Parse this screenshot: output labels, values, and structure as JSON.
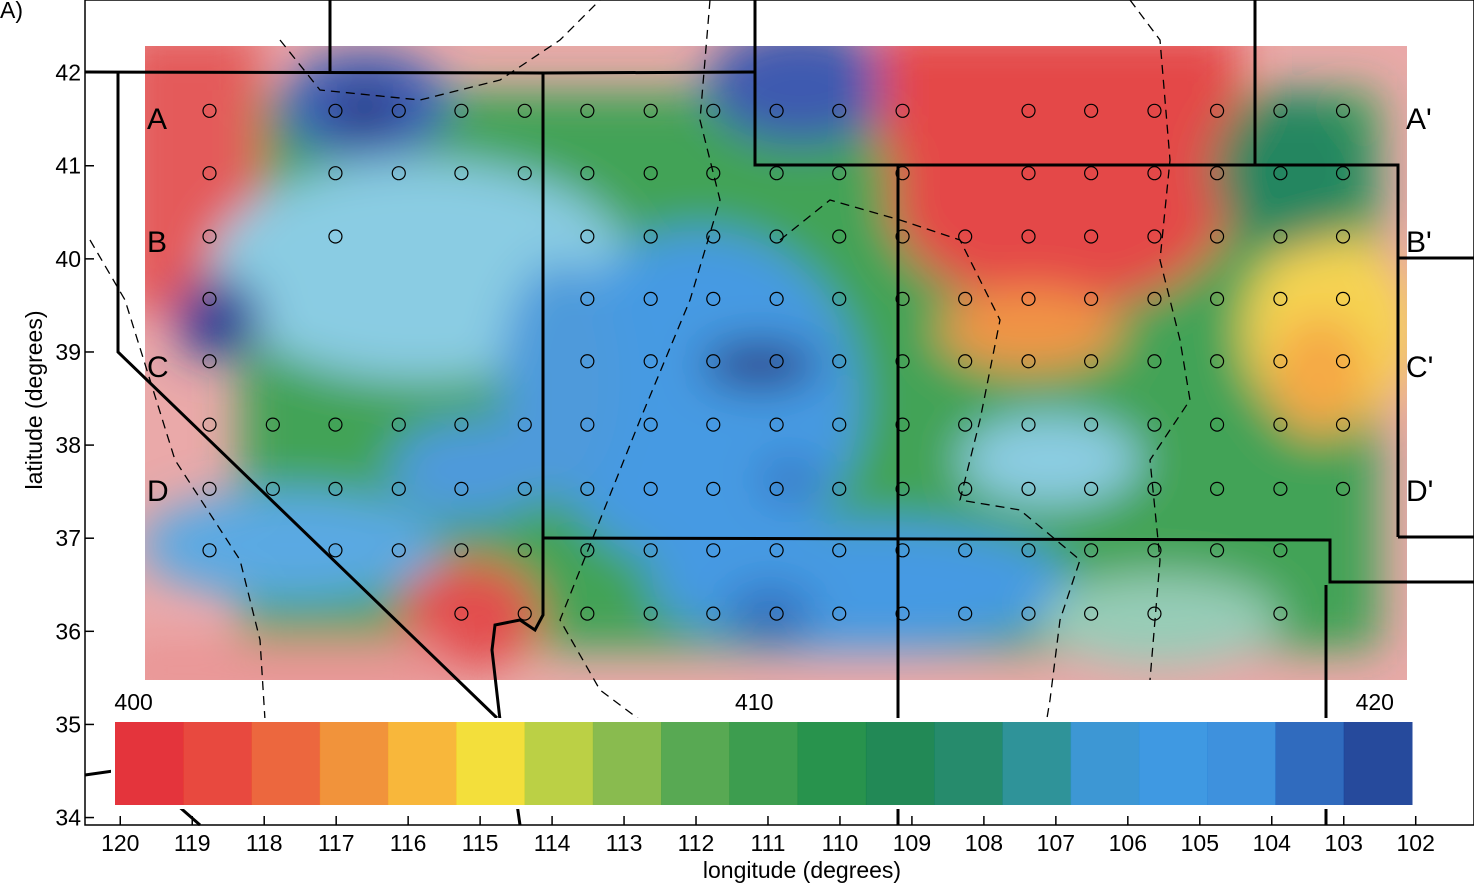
{
  "chart_data": {
    "type": "map",
    "panel_label": "A)",
    "xlabel": "longitude (degrees)",
    "ylabel": "latitude (degrees)",
    "xlim": [
      120.49,
      101.19
    ],
    "ylim": [
      33.92,
      42.78
    ],
    "xticks": [
      120,
      119,
      118,
      117,
      116,
      115,
      114,
      113,
      112,
      111,
      110,
      109,
      108,
      107,
      106,
      105,
      104,
      103,
      102
    ],
    "yticks": [
      34,
      35,
      36,
      37,
      38,
      39,
      40,
      41,
      42
    ],
    "profile_labels": {
      "left": [
        "A",
        "B",
        "C",
        "D"
      ],
      "right": [
        "A'",
        "B'",
        "C'",
        "D'"
      ]
    },
    "stations": [
      {
        "lat": 41.59,
        "lons": [
          118.76,
          117.01,
          116.13,
          115.26,
          114.38,
          113.51,
          112.63,
          111.76,
          110.88,
          110.01,
          109.13,
          107.38,
          106.51,
          105.63,
          104.76,
          103.88,
          103.01
        ]
      },
      {
        "lat": 40.92,
        "lons": [
          118.76,
          117.01,
          116.13,
          115.26,
          114.38,
          113.51,
          112.63,
          111.76,
          110.88,
          110.01,
          109.13,
          107.38,
          106.51,
          105.63,
          104.76,
          103.88,
          103.01
        ]
      },
      {
        "lat": 40.24,
        "lons": [
          118.76,
          117.01,
          113.51,
          112.63,
          111.76,
          110.88,
          110.01,
          109.13,
          108.26,
          107.38,
          106.51,
          105.63,
          104.76,
          103.88,
          103.01
        ]
      },
      {
        "lat": 39.57,
        "lons": [
          118.76,
          113.51,
          112.63,
          111.76,
          110.88,
          110.01,
          109.13,
          108.26,
          107.38,
          106.51,
          105.63,
          104.76,
          103.88,
          103.01
        ]
      },
      {
        "lat": 38.9,
        "lons": [
          118.76,
          113.51,
          112.63,
          111.76,
          110.88,
          110.01,
          109.13,
          108.26,
          107.38,
          106.51,
          105.63,
          104.76,
          103.88,
          103.01
        ]
      },
      {
        "lat": 38.22,
        "lons": [
          118.76,
          117.88,
          117.01,
          116.13,
          115.26,
          114.38,
          113.51,
          112.63,
          111.76,
          110.88,
          110.01,
          109.13,
          108.26,
          107.38,
          106.51,
          105.63,
          104.76,
          103.88,
          103.01
        ]
      },
      {
        "lat": 37.53,
        "lons": [
          118.76,
          117.88,
          117.01,
          116.13,
          115.26,
          114.38,
          113.51,
          112.63,
          111.76,
          110.88,
          110.01,
          109.13,
          108.26,
          107.38,
          106.51,
          105.63,
          104.76,
          103.88,
          103.01
        ]
      },
      {
        "lat": 36.87,
        "lons": [
          118.76,
          117.01,
          116.13,
          115.26,
          114.38,
          113.51,
          112.63,
          111.76,
          110.88,
          110.01,
          109.13,
          108.26,
          107.38,
          106.51,
          105.63,
          104.76,
          103.88
        ]
      },
      {
        "lat": 36.19,
        "lons": [
          115.26,
          114.38,
          113.51,
          112.63,
          111.76,
          110.88,
          110.01,
          109.13,
          108.26,
          107.38,
          106.51,
          105.63,
          103.88
        ]
      }
    ],
    "colorbar": {
      "lim": [
        399.7,
        420.6
      ],
      "ticks": [
        400,
        410,
        420
      ],
      "colors": [
        "#e2232b",
        "#e6392f",
        "#ea5a2e",
        "#f08a2a",
        "#f7b12a",
        "#f2dc2a",
        "#b5cc35",
        "#7fb540",
        "#4aa244",
        "#2d9540",
        "#168a3e",
        "#0f7f48",
        "#13815f",
        "#1d8a90",
        "#2c8ed0",
        "#2f90e0",
        "#2e88da",
        "#1e5eb8",
        "#133b94"
      ]
    }
  }
}
